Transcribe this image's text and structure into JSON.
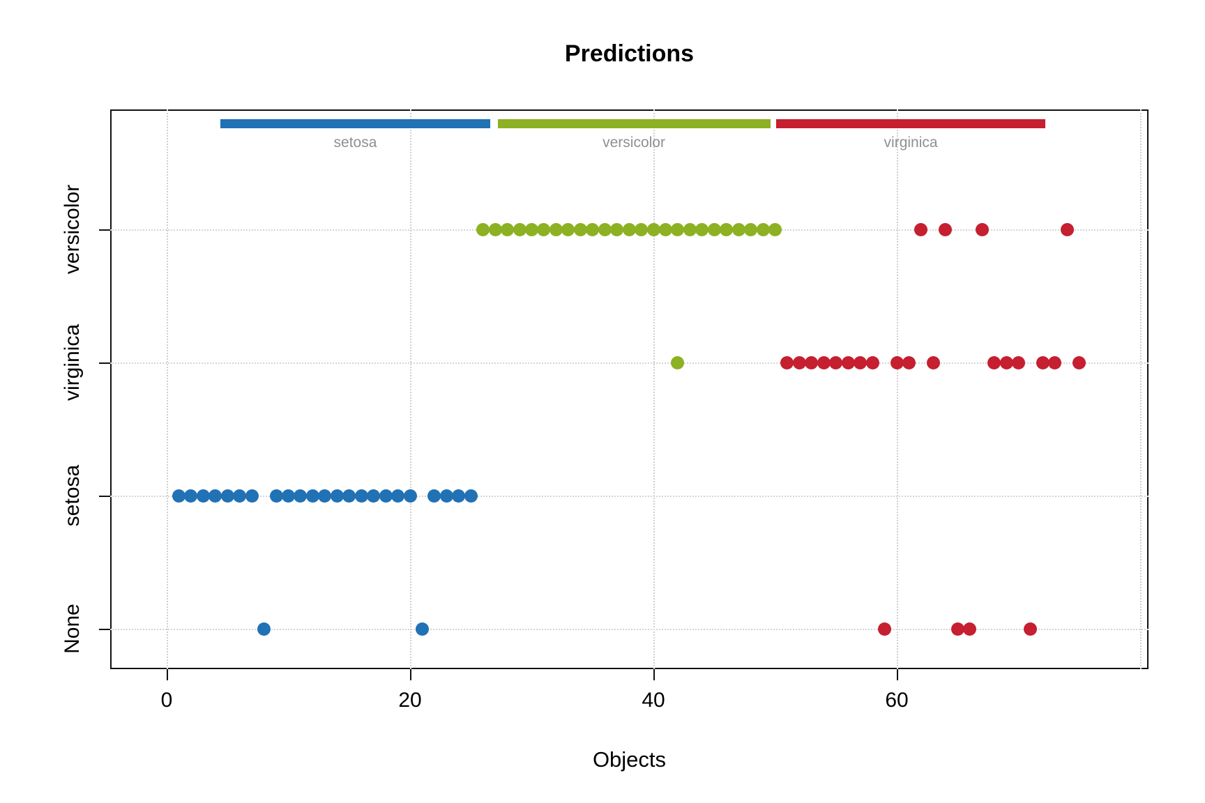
{
  "chart_data": {
    "type": "scatter",
    "title": "Predictions",
    "xlabel": "Objects",
    "x_ticks": [
      0,
      20,
      40,
      60
    ],
    "x_gridlines": [
      0,
      20,
      40,
      60,
      80
    ],
    "x_axis_range": [
      -4.6,
      80.7
    ],
    "legend_position": "none",
    "grid": "dotted",
    "classes": {
      "setosa": "#2171b5",
      "versicolor": "#8cb122",
      "virginica": "#c51f30"
    },
    "top_bands": [
      {
        "label": "setosa",
        "class": "setosa",
        "x_start": 4.4,
        "x_end": 26.6
      },
      {
        "label": "versicolor",
        "class": "versicolor",
        "x_start": 27.2,
        "x_end": 49.6
      },
      {
        "label": "virginica",
        "class": "virginica",
        "x_start": 50.1,
        "x_end": 72.2
      }
    ],
    "rows": [
      {
        "label": "versicolor",
        "groups": [
          {
            "class": "versicolor",
            "x": [
              26,
              27,
              28,
              29,
              30,
              31,
              32,
              33,
              34,
              35,
              36,
              37,
              38,
              39,
              40,
              41,
              42,
              43,
              44,
              45,
              46,
              47,
              48,
              49,
              50
            ]
          },
          {
            "class": "virginica",
            "x": [
              62,
              64,
              67,
              74
            ]
          }
        ]
      },
      {
        "label": "virginica",
        "groups": [
          {
            "class": "versicolor",
            "x": [
              42
            ]
          },
          {
            "class": "virginica",
            "x": [
              51,
              52,
              53,
              54,
              55,
              56,
              57,
              58,
              60,
              61,
              63,
              68,
              69,
              70,
              72,
              73,
              75
            ]
          }
        ]
      },
      {
        "label": "setosa",
        "groups": [
          {
            "class": "setosa",
            "x": [
              1,
              2,
              3,
              4,
              5,
              6,
              7,
              9,
              10,
              11,
              12,
              13,
              14,
              15,
              16,
              17,
              18,
              19,
              20,
              22,
              23,
              24,
              25
            ]
          }
        ]
      },
      {
        "label": "None",
        "groups": [
          {
            "class": "setosa",
            "x": [
              8,
              21
            ]
          },
          {
            "class": "virginica",
            "x": [
              59,
              65,
              66,
              71
            ]
          }
        ]
      }
    ]
  }
}
